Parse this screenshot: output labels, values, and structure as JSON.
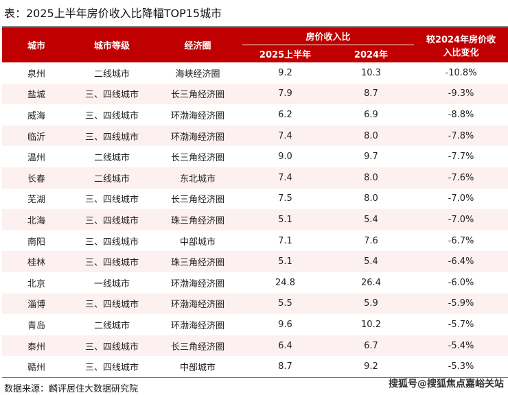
{
  "title": "表：2025上半年房价收入比降幅TOP15城市",
  "headers": {
    "city": "城市",
    "tier": "城市等级",
    "zone": "经济圈",
    "ratio_group": "房价收入比",
    "h1_2025": "2025上半年",
    "y2024": "2024年",
    "change": "较2024年房价收入比变化"
  },
  "rows": [
    [
      "泉州",
      "二线城市",
      "海峡经济圈",
      "9.2",
      "10.3",
      "-10.8%"
    ],
    [
      "盐城",
      "三、四线城市",
      "长三角经济圈",
      "7.9",
      "8.7",
      "-9.3%"
    ],
    [
      "威海",
      "三、四线城市",
      "环渤海经济圈",
      "6.2",
      "6.9",
      "-8.8%"
    ],
    [
      "临沂",
      "三、四线城市",
      "环渤海经济圈",
      "7.4",
      "8.0",
      "-7.8%"
    ],
    [
      "温州",
      "二线城市",
      "长三角经济圈",
      "9.0",
      "9.7",
      "-7.7%"
    ],
    [
      "长春",
      "二线城市",
      "东北城市",
      "7.4",
      "8.0",
      "-7.6%"
    ],
    [
      "芜湖",
      "三、四线城市",
      "长三角经济圈",
      "7.5",
      "8.0",
      "-7.0%"
    ],
    [
      "北海",
      "三、四线城市",
      "珠三角经济圈",
      "5.1",
      "5.4",
      "-7.0%"
    ],
    [
      "南阳",
      "三、四线城市",
      "中部城市",
      "7.1",
      "7.6",
      "-6.7%"
    ],
    [
      "桂林",
      "三、四线城市",
      "珠三角经济圈",
      "5.1",
      "5.4",
      "-6.4%"
    ],
    [
      "北京",
      "一线城市",
      "环渤海经济圈",
      "24.8",
      "26.4",
      "-6.0%"
    ],
    [
      "淄博",
      "三、四线城市",
      "环渤海经济圈",
      "5.5",
      "5.9",
      "-5.9%"
    ],
    [
      "青岛",
      "二线城市",
      "环渤海经济圈",
      "9.6",
      "10.2",
      "-5.7%"
    ],
    [
      "泰州",
      "三、四线城市",
      "长三角经济圈",
      "6.4",
      "6.7",
      "-5.4%"
    ],
    [
      "赣州",
      "三、四线城市",
      "中部城市",
      "8.7",
      "9.2",
      "-5.3%"
    ]
  ],
  "source": "数据来源：麟评居住大数据研究院",
  "watermark": "搜狐号@搜狐焦点嘉峪关站",
  "colors": {
    "header": "#c00000",
    "alt_row": "#fcf0f0"
  }
}
